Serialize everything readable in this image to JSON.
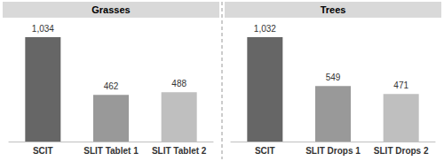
{
  "chart_data": [
    {
      "type": "bar",
      "title": "Grasses",
      "categories": [
        "SCIT",
        "SLIT Tablet 1",
        "SLIT Tablet 2"
      ],
      "values": [
        1034,
        462,
        488
      ],
      "value_labels": [
        "1,034",
        "462",
        "488"
      ],
      "colors": [
        "#666666",
        "#999999",
        "#bfbfbf"
      ],
      "data_labels": true,
      "tick_labels": "x"
    },
    {
      "type": "bar",
      "title": "Trees",
      "categories": [
        "SCIT",
        "SLIT Drops 1",
        "SLIT Drops 2"
      ],
      "values": [
        1032,
        549,
        471
      ],
      "value_labels": [
        "1,032",
        "549",
        "471"
      ],
      "colors": [
        "#666666",
        "#999999",
        "#bfbfbf"
      ],
      "data_labels": true,
      "tick_labels": "x"
    }
  ]
}
